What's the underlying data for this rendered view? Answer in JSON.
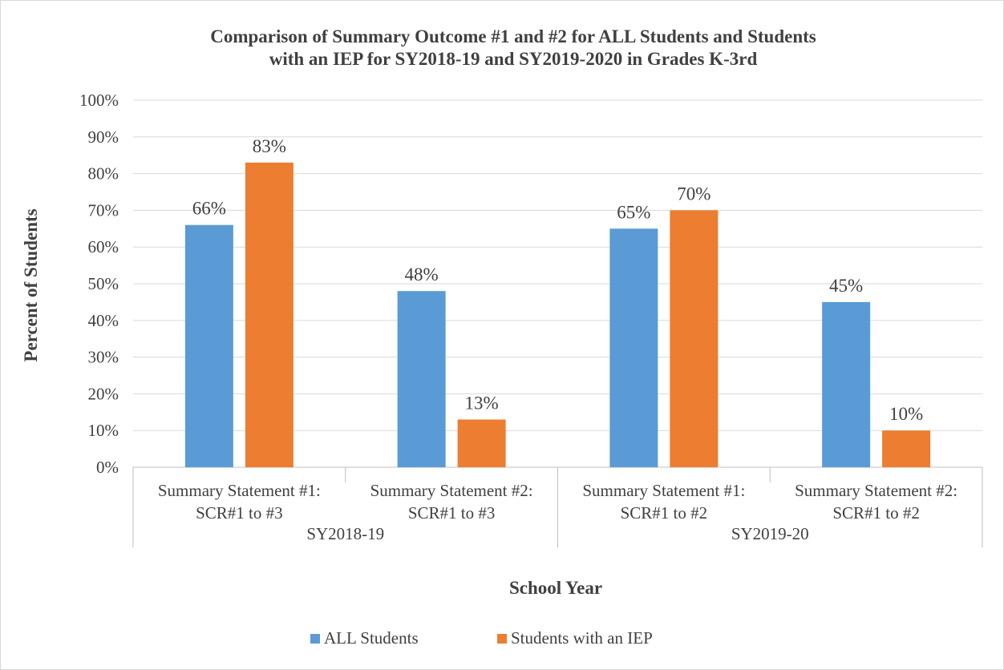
{
  "chart_data": {
    "type": "bar",
    "title_lines": [
      "Comparison of Summary Outcome #1 and  #2 for ALL Students and Students",
      "with an IEP for SY2018-19 and SY2019-2020 in Grades K-3rd"
    ],
    "xlabel": "School Year",
    "ylabel": "Percent of Students",
    "ylim": [
      0,
      100
    ],
    "y_ticks": [
      "0%",
      "10%",
      "20%",
      "30%",
      "40%",
      "50%",
      "60%",
      "70%",
      "80%",
      "90%",
      "100%"
    ],
    "grid": true,
    "legend_position": "bottom",
    "categories": [
      {
        "line1": "Summary Statement #1:",
        "line2": "SCR#1 to #3"
      },
      {
        "line1": "Summary Statement #2:",
        "line2": "SCR#1 to #3"
      },
      {
        "line1": "Summary Statement #1:",
        "line2": "SCR#1 to #2"
      },
      {
        "line1": "Summary Statement #2:",
        "line2": "SCR#1 to #2"
      }
    ],
    "groups": [
      {
        "label": "SY2018-19",
        "span": [
          0,
          1
        ]
      },
      {
        "label": "SY2019-20",
        "span": [
          2,
          3
        ]
      }
    ],
    "series": [
      {
        "name": "ALL Students",
        "color": "#5b9bd5",
        "values": [
          66,
          48,
          65,
          45
        ],
        "labels": [
          "66%",
          "48%",
          "65%",
          "45%"
        ]
      },
      {
        "name": "Students with an IEP",
        "color": "#ed7d31",
        "values": [
          83,
          13,
          70,
          10
        ],
        "labels": [
          "83%",
          "13%",
          "70%",
          "10%"
        ]
      }
    ]
  }
}
